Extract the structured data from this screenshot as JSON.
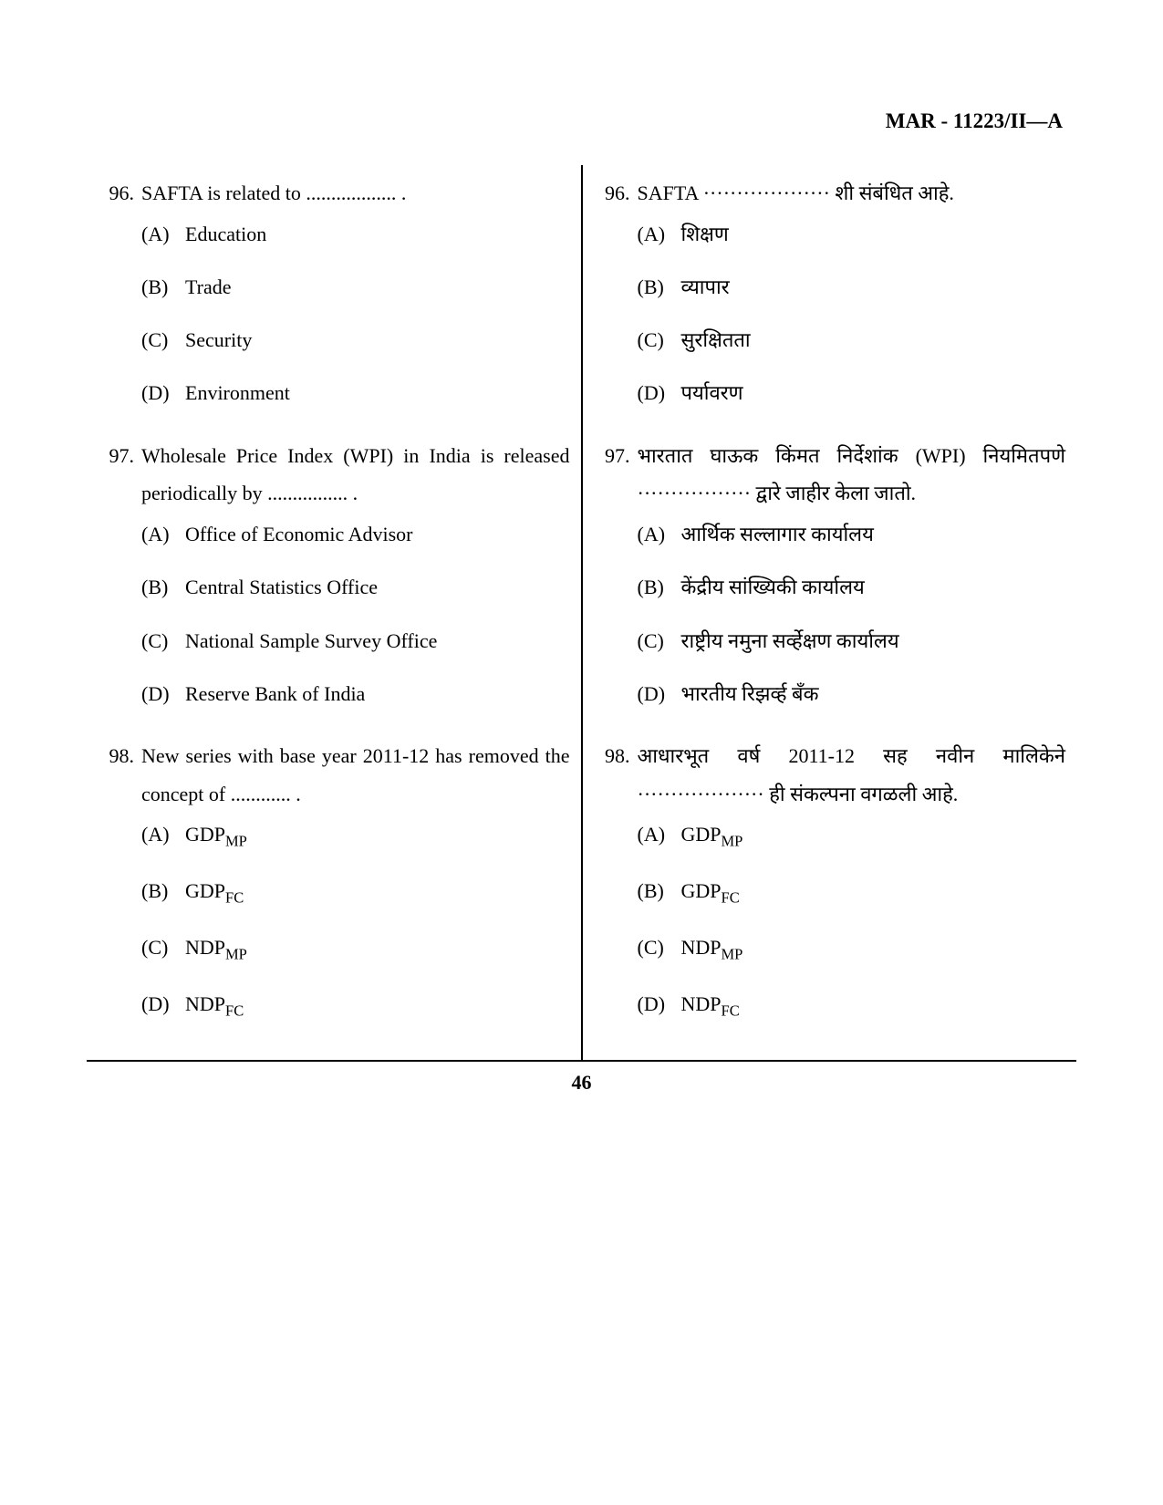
{
  "header": "MAR - 11223/II—A",
  "page_number": "46",
  "left_column": {
    "questions": [
      {
        "num": "96.",
        "text_parts": [
          "SAFTA is related to .................. ."
        ],
        "options": [
          {
            "label": "(A)",
            "text": "Education"
          },
          {
            "label": "(B)",
            "text": "Trade"
          },
          {
            "label": "(C)",
            "text": "Security"
          },
          {
            "label": "(D)",
            "text": "Environment"
          }
        ]
      },
      {
        "num": "97.",
        "text_parts": [
          "Wholesale Price Index (WPI) in India is released periodically by ................ ."
        ],
        "options": [
          {
            "label": "(A)",
            "text": "Office of Economic Advisor"
          },
          {
            "label": "(B)",
            "text": "Central Statistics Office"
          },
          {
            "label": "(C)",
            "text": "National Sample Survey Office"
          },
          {
            "label": "(D)",
            "text": "Reserve Bank of India"
          }
        ]
      },
      {
        "num": "98.",
        "text_parts": [
          "New series with base year 2011-12 has removed the concept of ............ ."
        ],
        "options": [
          {
            "label": "(A)",
            "base": "GDP",
            "sub": "MP"
          },
          {
            "label": "(B)",
            "base": "GDP",
            "sub": "FC"
          },
          {
            "label": "(C)",
            "base": "NDP",
            "sub": "MP"
          },
          {
            "label": "(D)",
            "base": "NDP",
            "sub": "FC"
          }
        ]
      }
    ]
  },
  "right_column": {
    "questions": [
      {
        "num": "96.",
        "text_parts": [
          "SAFTA ··················· शी संबंधित आहे."
        ],
        "options": [
          {
            "label": "(A)",
            "text": "शिक्षण"
          },
          {
            "label": "(B)",
            "text": "व्यापार"
          },
          {
            "label": "(C)",
            "text": "सुरक्षितता"
          },
          {
            "label": "(D)",
            "text": "पर्यावरण"
          }
        ]
      },
      {
        "num": "97.",
        "text_parts": [
          "भारतात घाऊक किंमत निर्देशांक (WPI) नियमितपणे ················· द्वारे जाहीर केला जातो."
        ],
        "options": [
          {
            "label": "(A)",
            "text": "आर्थिक सल्लागार कार्यालय"
          },
          {
            "label": "(B)",
            "text": "केंद्रीय सांख्यिकी कार्यालय"
          },
          {
            "label": "(C)",
            "text": "राष्ट्रीय नमुना सर्व्हेक्षण कार्यालय"
          },
          {
            "label": "(D)",
            "text": "भारतीय रिझर्व्ह बँक"
          }
        ]
      },
      {
        "num": "98.",
        "text_parts": [
          "आधारभूत वर्ष 2011-12 सह नवीन मालिकेने ··················· ही संकल्पना वगळली आहे."
        ],
        "options": [
          {
            "label": "(A)",
            "base": "GDP",
            "sub": "MP"
          },
          {
            "label": "(B)",
            "base": "GDP",
            "sub": "FC"
          },
          {
            "label": "(C)",
            "base": "NDP",
            "sub": "MP"
          },
          {
            "label": "(D)",
            "base": "NDP",
            "sub": "FC"
          }
        ]
      }
    ]
  }
}
